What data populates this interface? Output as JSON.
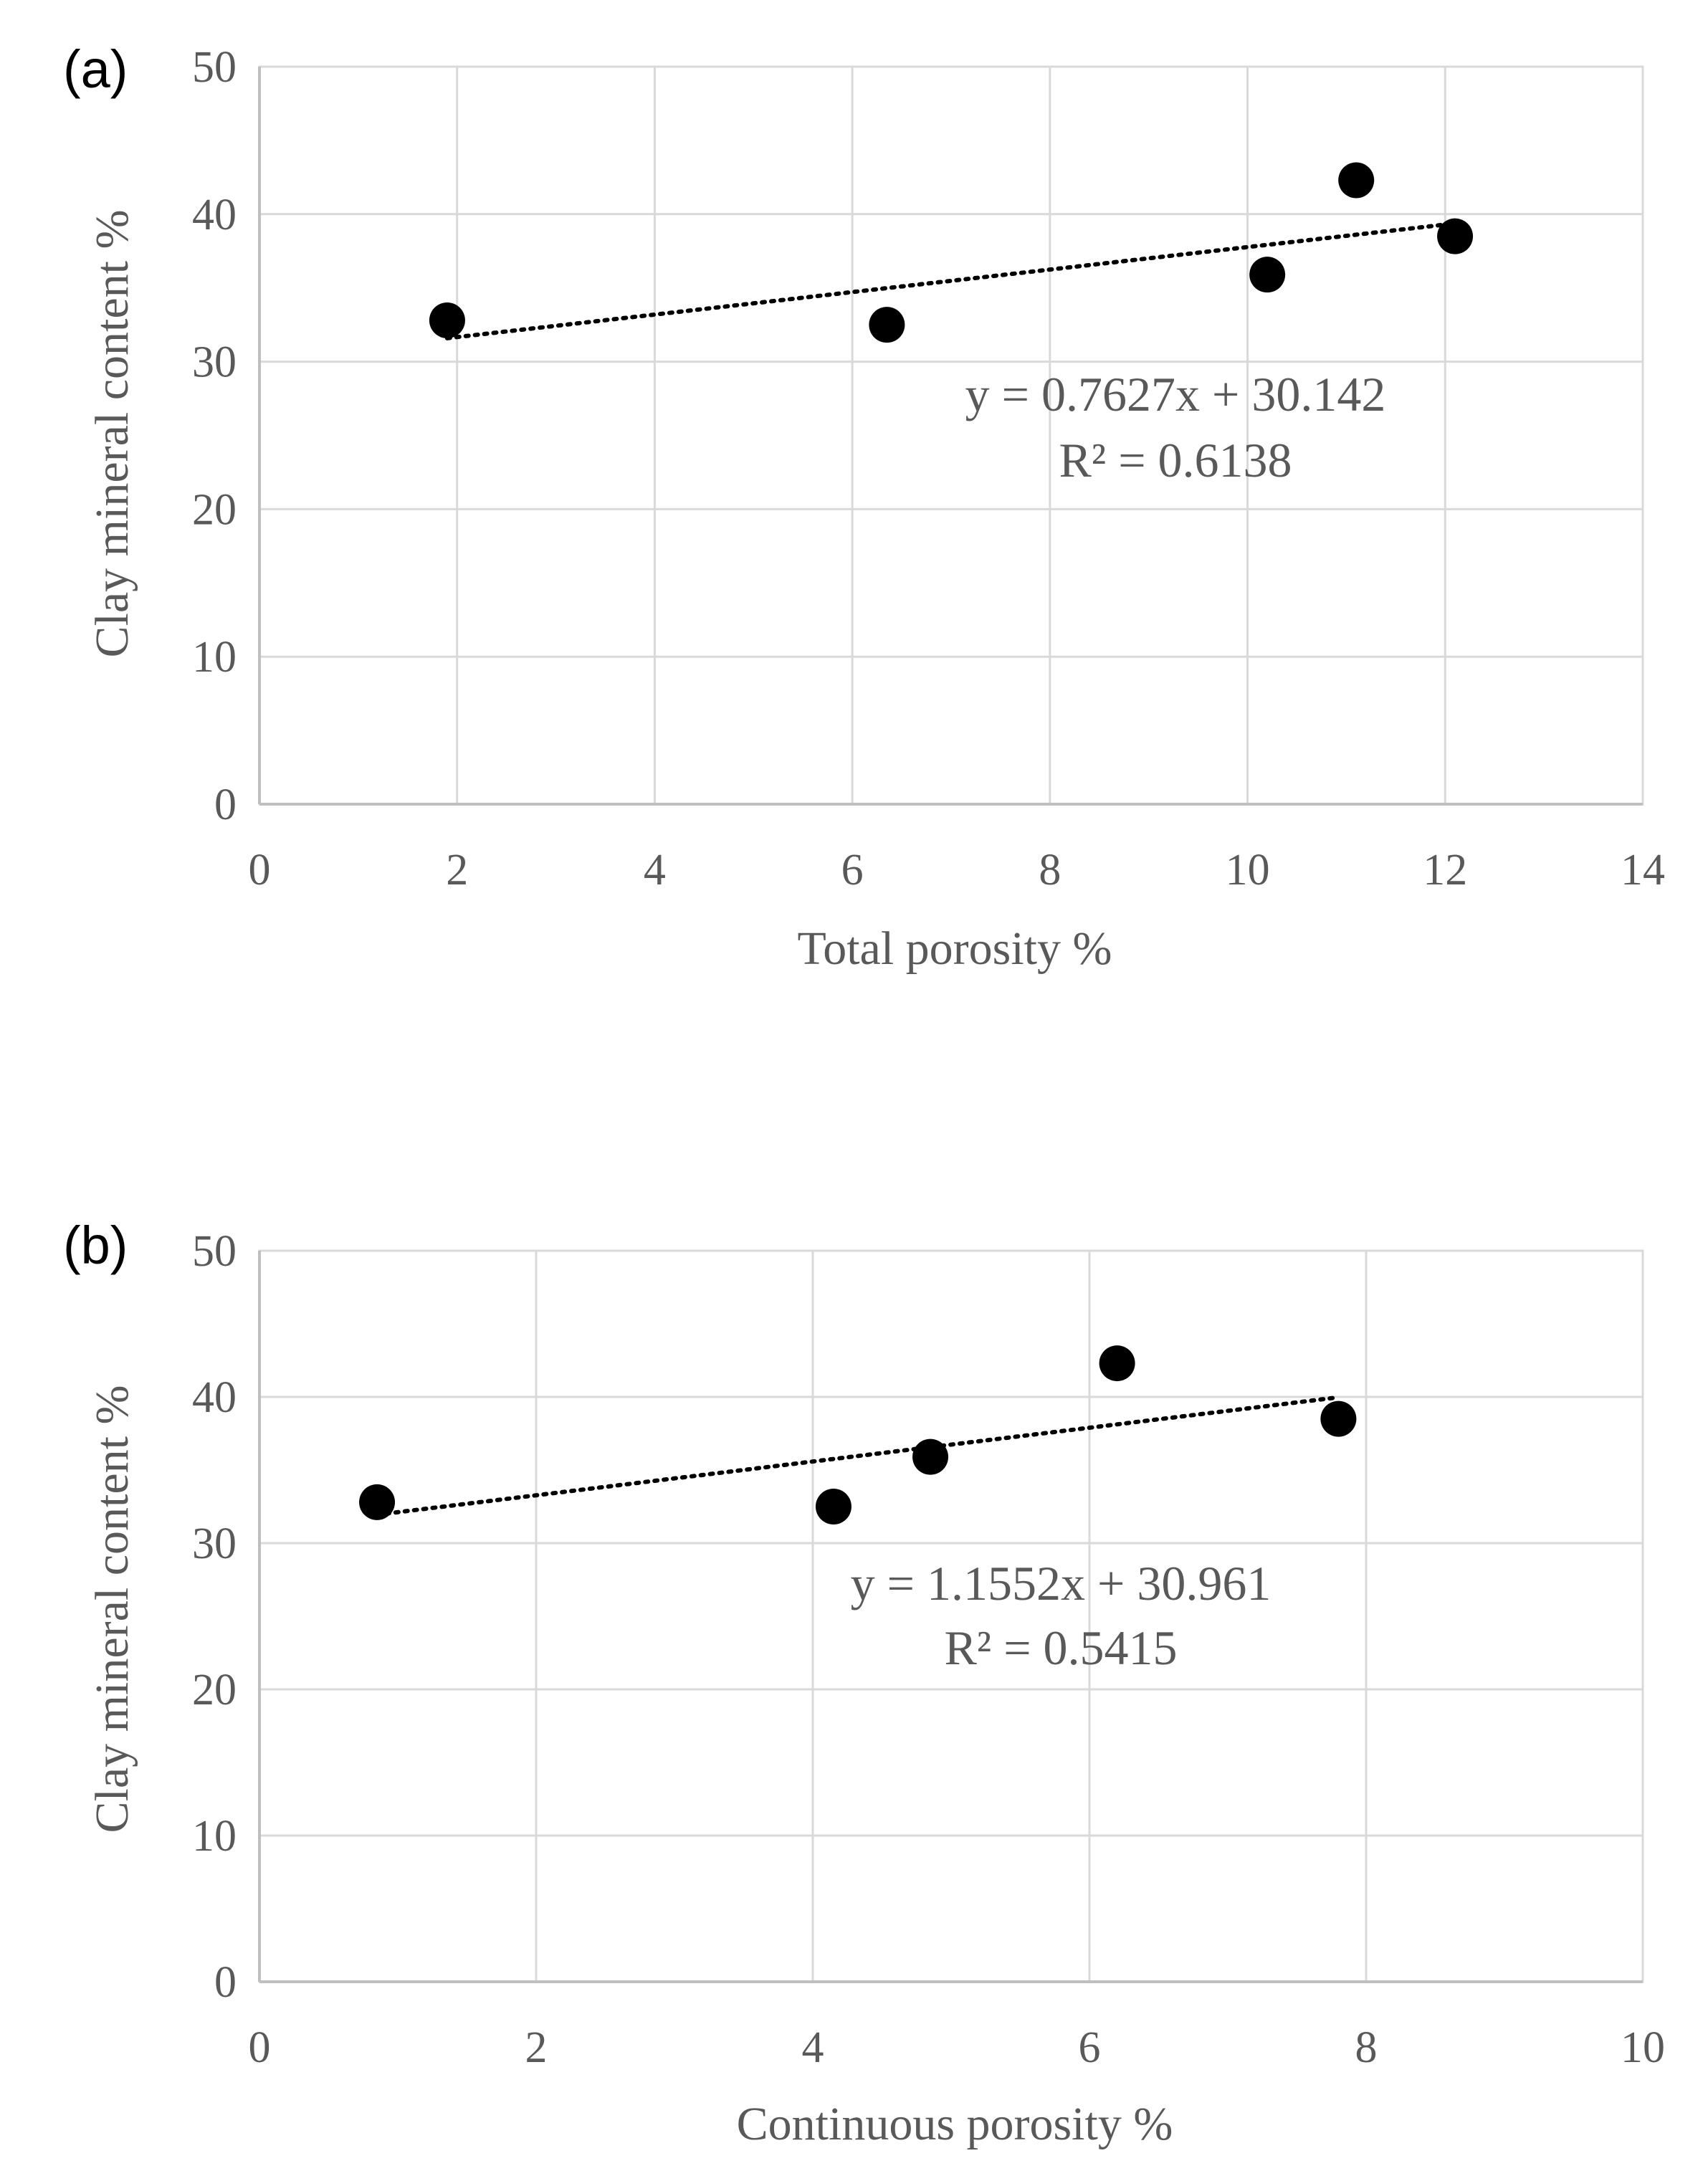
{
  "chart_data": [
    {
      "type": "scatter",
      "panel_label": "(a)",
      "xlabel": "Total porosity %",
      "ylabel": "Clay mineral content %",
      "xlim": [
        0,
        14
      ],
      "ylim": [
        0,
        50
      ],
      "x_ticks": [
        "0",
        "2",
        "4",
        "6",
        "8",
        "10",
        "12",
        "14"
      ],
      "y_ticks": [
        "0",
        "10",
        "20",
        "30",
        "40",
        "50"
      ],
      "grid": true,
      "points": [
        {
          "x": 1.9,
          "y": 32.8
        },
        {
          "x": 6.35,
          "y": 32.5
        },
        {
          "x": 10.2,
          "y": 35.9
        },
        {
          "x": 11.1,
          "y": 42.3
        },
        {
          "x": 12.1,
          "y": 38.5
        }
      ],
      "trendline": {
        "slope": 0.7627,
        "intercept": 30.142,
        "x_from": 1.9,
        "x_to": 12.1
      },
      "equation_text": "y = 0.7627x + 30.142",
      "r2_text": "R² = 0.6138"
    },
    {
      "type": "scatter",
      "panel_label": "(b)",
      "xlabel": "Continuous porosity %",
      "ylabel": "Clay mineral content %",
      "xlim": [
        0,
        10
      ],
      "ylim": [
        0,
        50
      ],
      "x_ticks": [
        "0",
        "2",
        "4",
        "6",
        "8",
        "10"
      ],
      "y_ticks": [
        "0",
        "10",
        "20",
        "30",
        "40",
        "50"
      ],
      "grid": true,
      "points": [
        {
          "x": 0.85,
          "y": 32.8
        },
        {
          "x": 4.15,
          "y": 32.5
        },
        {
          "x": 4.85,
          "y": 35.9
        },
        {
          "x": 6.2,
          "y": 42.3
        },
        {
          "x": 7.8,
          "y": 38.5
        }
      ],
      "trendline": {
        "slope": 1.1552,
        "intercept": 30.961,
        "x_from": 0.85,
        "x_to": 7.8
      },
      "equation_text": "y = 1.1552x + 30.961",
      "r2_text": "R² = 0.5415"
    }
  ]
}
